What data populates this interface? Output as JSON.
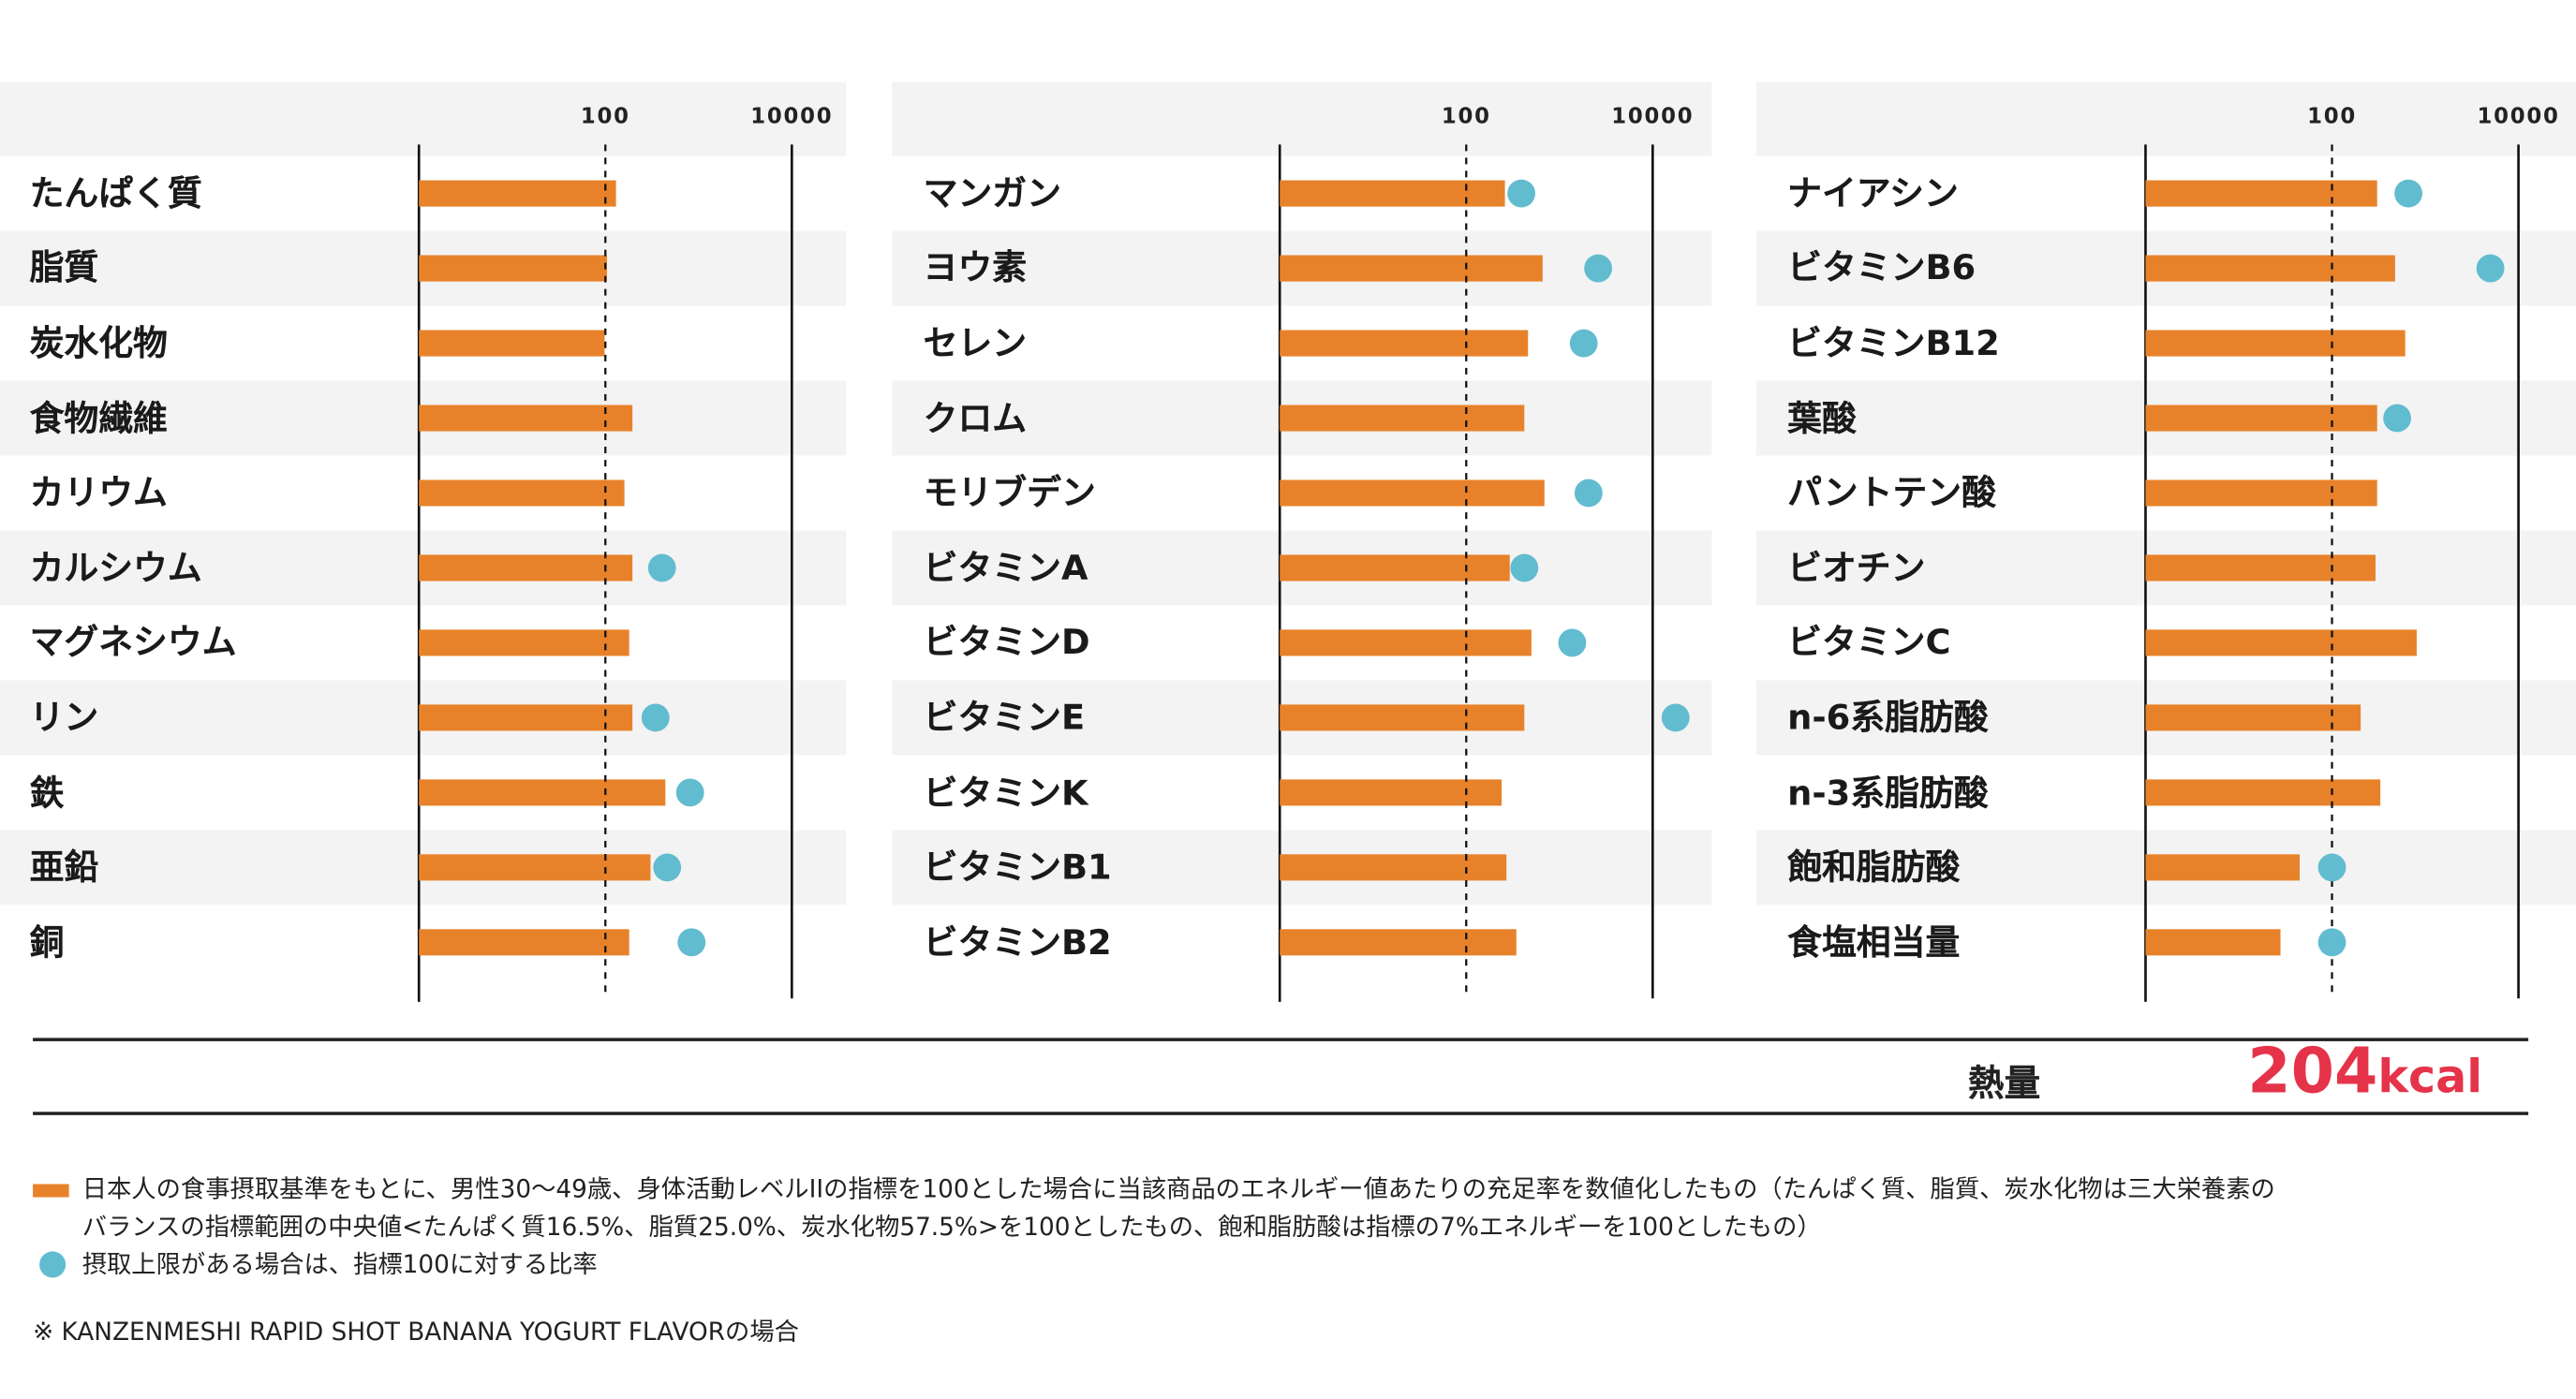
{
  "colors": {
    "bar": "#e8822a",
    "dot": "#62bccf",
    "energy": "#e5334a",
    "stripe": "#f3f3f3"
  },
  "chart_data": [
    {
      "type": "bar",
      "orientation": "horizontal",
      "x_scale": "log",
      "reference_line": 100,
      "ticks": [
        "100",
        "10000"
      ],
      "categories": [
        "たんぱく質",
        "脂質",
        "炭水化物",
        "食物繊維",
        "カリウム",
        "カルシウム",
        "マグネシウム",
        "リン",
        "鉄",
        "亜鉛",
        "銅"
      ],
      "series": [
        {
          "name": "日本人の食事摂取基準をもとに、男性30〜49歳、身体活動レベルIIの指標を100とした場合に当該商品のエネルギー値あたりの充足率を数値化したもの",
          "values": [
            130,
            104,
            98,
            195,
            160,
            195,
            180,
            195,
            440,
            305,
            180
          ]
        },
        {
          "name": "摂取上限がある場合は、指標100に対する比率",
          "values": [
            null,
            null,
            null,
            null,
            null,
            405,
            null,
            345,
            810,
            460,
            840
          ]
        }
      ]
    },
    {
      "type": "bar",
      "orientation": "horizontal",
      "x_scale": "log",
      "reference_line": 100,
      "ticks": [
        "100",
        "10000"
      ],
      "categories": [
        "マンガン",
        "ヨウ素",
        "セレン",
        "クロム",
        "モリブデン",
        "ビタミンA",
        "ビタミンD",
        "ビタミンE",
        "ビタミンK",
        "ビタミンB1",
        "ビタミンB2"
      ],
      "series": [
        {
          "name": "日本人の食事摂取基準をもとに、男性30〜49歳、身体活動レベルIIの指標を100とした場合に当該商品のエネルギー値あたりの充足率を数値化したもの",
          "values": [
            260,
            660,
            460,
            420,
            690,
            293,
            500,
            420,
            240,
            270,
            345
          ]
        },
        {
          "name": "摂取上限がある場合は、指標100に対する比率",
          "values": [
            390,
            2600,
            1820,
            null,
            2050,
            420,
            1370,
            17600,
            null,
            null,
            null
          ]
        }
      ]
    },
    {
      "type": "bar",
      "orientation": "horizontal",
      "x_scale": "log",
      "reference_line": 100,
      "ticks": [
        "100",
        "10000"
      ],
      "categories": [
        "ナイアシン",
        "ビタミンB6",
        "ビタミンB12",
        "葉酸",
        "パントテン酸",
        "ビオチン",
        "ビタミンC",
        "n-6系脂肪酸",
        "n-3系脂肪酸",
        "飽和脂肪酸",
        "食塩相当量"
      ],
      "series": [
        {
          "name": "日本人の食事摂取基準をもとに、男性30〜49歳、身体活動レベルIIの指標を100とした場合に当該商品のエネルギー値あたりの充足率を数値化したもの",
          "values": [
            305,
            475,
            610,
            305,
            305,
            293,
            810,
            203,
            330,
            45,
            28
          ]
        },
        {
          "name": "摂取上限がある場合は、指標100に対する比率",
          "values": [
            660,
            5000,
            null,
            500,
            null,
            null,
            null,
            null,
            null,
            100,
            100
          ]
        }
      ]
    }
  ],
  "energy": {
    "label": "熱量",
    "value": "204",
    "unit": "kcal"
  },
  "notes": {
    "bar_line1": "日本人の食事摂取基準をもとに、男性30〜49歳、身体活動レベルIIの指標を100とした場合に当該商品のエネルギー値あたりの充足率を数値化したもの（たんぱく質、脂質、炭水化物は三大栄養素の",
    "bar_line2": "バランスの指標範囲の中央値<たんぱく質16.5%、脂質25.0%、炭水化物57.5%>を100としたもの、飽和脂肪酸は指標の7%エネルギーを100としたもの）",
    "dot": "摂取上限がある場合は、指標100に対する比率",
    "product": "※ KANZENMESHI RAPID SHOT BANANA YOGURT FLAVORの場合"
  }
}
